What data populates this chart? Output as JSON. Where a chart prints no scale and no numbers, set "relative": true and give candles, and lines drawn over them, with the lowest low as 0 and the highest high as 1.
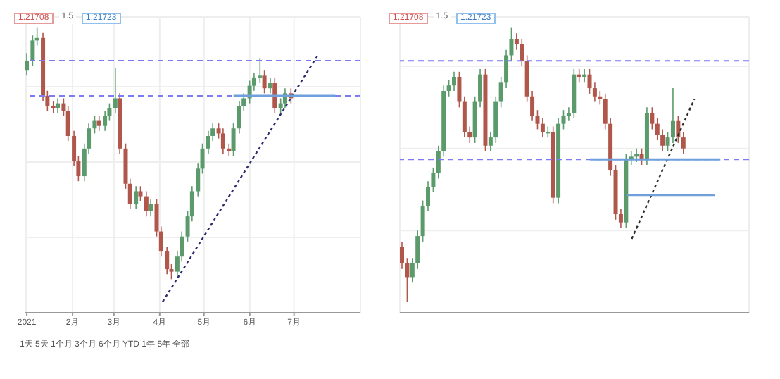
{
  "chart_data": [
    {
      "type": "candlestick",
      "relative": true,
      "grid": true,
      "annotations": [
        "1.21708",
        "1.5",
        "1.21723",
        "1天 5天 1个月 3个月 6个月 YTD 1年 5年 全部"
      ],
      "x": [
        "2021-01-01",
        "2021-01-05",
        "2021-01-08",
        "2021-01-12",
        "2021-01-15",
        "2021-01-19",
        "2021-01-22",
        "2021-01-26",
        "2021-01-29",
        "2021-02-02",
        "2021-02-05",
        "2021-02-09",
        "2021-02-12",
        "2021-02-16",
        "2021-02-19",
        "2021-02-23",
        "2021-02-26",
        "2021-03-02",
        "2021-03-05",
        "2021-03-09",
        "2021-03-12",
        "2021-03-16",
        "2021-03-19",
        "2021-03-23",
        "2021-03-26",
        "2021-03-30",
        "2021-04-02",
        "2021-04-06",
        "2021-04-09",
        "2021-04-13",
        "2021-04-16",
        "2021-04-20",
        "2021-04-23",
        "2021-04-27",
        "2021-04-30",
        "2021-05-04",
        "2021-05-07",
        "2021-05-11",
        "2021-05-14",
        "2021-05-18",
        "2021-05-21",
        "2021-05-25",
        "2021-05-28",
        "2021-06-01",
        "2021-06-04",
        "2021-06-08",
        "2021-06-11",
        "2021-06-15",
        "2021-06-18",
        "2021-06-22",
        "2021-06-25",
        "2021-06-29"
      ],
      "ohlc": [
        [
          0.83,
          0.9,
          0.81,
          0.87
        ],
        [
          0.87,
          0.97,
          0.85,
          0.95
        ],
        [
          0.95,
          1,
          0.93,
          0.96
        ],
        [
          0.96,
          0.98,
          0.71,
          0.73
        ],
        [
          0.73,
          0.75,
          0.67,
          0.69
        ],
        [
          0.69,
          0.71,
          0.66,
          0.68
        ],
        [
          0.68,
          0.72,
          0.66,
          0.7
        ],
        [
          0.7,
          0.72,
          0.65,
          0.67
        ],
        [
          0.67,
          0.69,
          0.55,
          0.57
        ],
        [
          0.57,
          0.59,
          0.45,
          0.47
        ],
        [
          0.47,
          0.49,
          0.39,
          0.41
        ],
        [
          0.41,
          0.54,
          0.39,
          0.52
        ],
        [
          0.52,
          0.62,
          0.5,
          0.6
        ],
        [
          0.6,
          0.65,
          0.58,
          0.63
        ],
        [
          0.63,
          0.65,
          0.59,
          0.61
        ],
        [
          0.61,
          0.67,
          0.59,
          0.65
        ],
        [
          0.65,
          0.7,
          0.63,
          0.68
        ],
        [
          0.68,
          0.84,
          0.66,
          0.72
        ],
        [
          0.72,
          0.74,
          0.5,
          0.52
        ],
        [
          0.52,
          0.54,
          0.36,
          0.38
        ],
        [
          0.38,
          0.4,
          0.28,
          0.3
        ],
        [
          0.3,
          0.37,
          0.28,
          0.35
        ],
        [
          0.35,
          0.37,
          0.31,
          0.33
        ],
        [
          0.33,
          0.35,
          0.25,
          0.27
        ],
        [
          0.27,
          0.32,
          0.25,
          0.3
        ],
        [
          0.3,
          0.32,
          0.17,
          0.19
        ],
        [
          0.19,
          0.21,
          0.09,
          0.11
        ],
        [
          0.11,
          0.13,
          0.02,
          0.04
        ],
        [
          0.04,
          0.06,
          0,
          0.03
        ],
        [
          0.03,
          0.11,
          0.01,
          0.09
        ],
        [
          0.09,
          0.19,
          0.07,
          0.17
        ],
        [
          0.17,
          0.27,
          0.15,
          0.25
        ],
        [
          0.25,
          0.37,
          0.23,
          0.35
        ],
        [
          0.35,
          0.46,
          0.33,
          0.44
        ],
        [
          0.44,
          0.54,
          0.42,
          0.52
        ],
        [
          0.52,
          0.59,
          0.5,
          0.57
        ],
        [
          0.57,
          0.62,
          0.55,
          0.6
        ],
        [
          0.6,
          0.62,
          0.56,
          0.58
        ],
        [
          0.58,
          0.6,
          0.5,
          0.52
        ],
        [
          0.52,
          0.54,
          0.49,
          0.51
        ],
        [
          0.51,
          0.62,
          0.49,
          0.6
        ],
        [
          0.6,
          0.71,
          0.58,
          0.69
        ],
        [
          0.69,
          0.74,
          0.67,
          0.72
        ],
        [
          0.72,
          0.79,
          0.7,
          0.77
        ],
        [
          0.77,
          0.82,
          0.75,
          0.8
        ],
        [
          0.8,
          0.88,
          0.78,
          0.81
        ],
        [
          0.81,
          0.83,
          0.74,
          0.76
        ],
        [
          0.76,
          0.8,
          0.74,
          0.78
        ],
        [
          0.78,
          0.8,
          0.66,
          0.68
        ],
        [
          0.68,
          0.72,
          0.66,
          0.7
        ],
        [
          0.7,
          0.76,
          0.68,
          0.74
        ],
        [
          0.74,
          0.76,
          0.7,
          0.72
        ]
      ],
      "xlim": [
        "2020-12-31",
        "2021-08-15"
      ],
      "xticks": [
        {
          "value": "2021-01-01",
          "label": "2021"
        },
        {
          "value": "2021-02-01",
          "label": "2月"
        },
        {
          "value": "2021-03-01",
          "label": "3月"
        },
        {
          "value": "2021-04-01",
          "label": "4月"
        },
        {
          "value": "2021-05-01",
          "label": "5月"
        },
        {
          "value": "2021-06-01",
          "label": "6月"
        },
        {
          "value": "2021-07-01",
          "label": "7月"
        }
      ],
      "series": [
        {
          "type": "line",
          "x": [
            "2021-04-03",
            "2021-07-17"
          ],
          "values": [
            -0.09,
            0.89
          ],
          "color": "#2e2e6e",
          "line_style": "dotted"
        },
        {
          "type": "line",
          "x": [
            "2021-05-21",
            "2021-07-29"
          ],
          "values": [
            0.73,
            0.73
          ],
          "color": "#6fa0dc",
          "line_style": "solid"
        }
      ],
      "ref_lines": [
        {
          "axis": "y",
          "value": 0.87,
          "color": "#7b7bf5",
          "line_style": "dashed"
        },
        {
          "axis": "y",
          "value": 0.73,
          "color": "#7b7bf5",
          "line_style": "dashed"
        }
      ]
    },
    {
      "type": "candlestick",
      "relative": true,
      "grid": true,
      "annotations": [
        "1.21708",
        "1.5",
        "1.21723"
      ],
      "categories": [
        null,
        null,
        null,
        null,
        null,
        null,
        null,
        null,
        null,
        null,
        null,
        null,
        null,
        null,
        null,
        null,
        null,
        null,
        null,
        null,
        null,
        null,
        null,
        null,
        null,
        null,
        null,
        null,
        null,
        null,
        null,
        null,
        null,
        null,
        null,
        null,
        null,
        null,
        null,
        null,
        null,
        null,
        null,
        null,
        null,
        null,
        null,
        null,
        null,
        null,
        null,
        null,
        null,
        null,
        null,
        null,
        null,
        null,
        null,
        null,
        null,
        null,
        null,
        null,
        null,
        null,
        null
      ],
      "ohlc": [
        [
          0.2,
          0.22,
          0.12,
          0.14
        ],
        [
          0.14,
          0.16,
          0,
          0.09
        ],
        [
          0.09,
          0.16,
          0.07,
          0.14
        ],
        [
          0.14,
          0.26,
          0.12,
          0.24
        ],
        [
          0.24,
          0.37,
          0.22,
          0.35
        ],
        [
          0.35,
          0.44,
          0.33,
          0.42
        ],
        [
          0.42,
          0.49,
          0.4,
          0.47
        ],
        [
          0.47,
          0.57,
          0.45,
          0.55
        ],
        [
          0.55,
          0.79,
          0.53,
          0.77
        ],
        [
          0.77,
          0.81,
          0.75,
          0.79
        ],
        [
          0.79,
          0.84,
          0.77,
          0.82
        ],
        [
          0.82,
          0.84,
          0.71,
          0.73
        ],
        [
          0.73,
          0.75,
          0.6,
          0.62
        ],
        [
          0.62,
          0.64,
          0.58,
          0.6
        ],
        [
          0.6,
          0.75,
          0.58,
          0.73
        ],
        [
          0.73,
          0.85,
          0.71,
          0.83
        ],
        [
          0.83,
          0.85,
          0.55,
          0.57
        ],
        [
          0.57,
          0.62,
          0.55,
          0.6
        ],
        [
          0.6,
          0.75,
          0.58,
          0.73
        ],
        [
          0.73,
          0.82,
          0.71,
          0.8
        ],
        [
          0.8,
          0.92,
          0.78,
          0.9
        ],
        [
          0.9,
          1,
          0.88,
          0.96
        ],
        [
          0.96,
          0.98,
          0.92,
          0.94
        ],
        [
          0.94,
          0.96,
          0.86,
          0.88
        ],
        [
          0.88,
          0.9,
          0.73,
          0.75
        ],
        [
          0.75,
          0.77,
          0.66,
          0.68
        ],
        [
          0.68,
          0.7,
          0.63,
          0.65
        ],
        [
          0.65,
          0.67,
          0.6,
          0.62
        ],
        [
          0.62,
          0.64,
          0.6,
          0.62
        ],
        [
          0.62,
          0.64,
          0.36,
          0.38
        ],
        [
          0.38,
          0.67,
          0.36,
          0.65
        ],
        [
          0.65,
          0.7,
          0.63,
          0.68
        ],
        [
          0.68,
          0.71,
          0.66,
          0.69
        ],
        [
          0.69,
          0.85,
          0.67,
          0.83
        ],
        [
          0.83,
          0.85,
          0.8,
          0.82
        ],
        [
          0.82,
          0.85,
          0.8,
          0.83
        ],
        [
          0.83,
          0.85,
          0.76,
          0.78
        ],
        [
          0.78,
          0.8,
          0.73,
          0.75
        ],
        [
          0.75,
          0.77,
          0.72,
          0.74
        ],
        [
          0.74,
          0.76,
          0.63,
          0.65
        ],
        [
          0.65,
          0.67,
          0.46,
          0.48
        ],
        [
          0.48,
          0.5,
          0.3,
          0.32
        ],
        [
          0.32,
          0.34,
          0.27,
          0.29
        ],
        [
          0.29,
          0.54,
          0.27,
          0.52
        ],
        [
          0.52,
          0.55,
          0.5,
          0.53
        ],
        [
          0.53,
          0.56,
          0.51,
          0.54
        ],
        [
          0.54,
          0.56,
          0.5,
          0.52
        ],
        [
          0.52,
          0.71,
          0.5,
          0.69
        ],
        [
          0.69,
          0.71,
          0.63,
          0.65
        ],
        [
          0.65,
          0.67,
          0.59,
          0.61
        ],
        [
          0.61,
          0.63,
          0.55,
          0.57
        ],
        [
          0.57,
          0.62,
          0.55,
          0.6
        ],
        [
          0.6,
          0.78,
          0.58,
          0.66
        ],
        [
          0.66,
          0.68,
          0.58,
          0.6
        ],
        [
          0.6,
          0.62,
          0.54,
          0.56
        ],
        null,
        null,
        null,
        null,
        null,
        null,
        null,
        null,
        null,
        null,
        null,
        null
      ],
      "series": [
        {
          "type": "line",
          "values": [
            null,
            null,
            null,
            null,
            null,
            null,
            null,
            null,
            null,
            null,
            null,
            null,
            null,
            null,
            null,
            null,
            null,
            null,
            null,
            null,
            null,
            null,
            null,
            null,
            null,
            null,
            null,
            null,
            null,
            null,
            null,
            null,
            null,
            null,
            null,
            null,
            null,
            null,
            null,
            null,
            null,
            null,
            null,
            null,
            0.23,
            null,
            null,
            null,
            null,
            null,
            null,
            null,
            null,
            null,
            null,
            null,
            0.74,
            null,
            null,
            null,
            null,
            null,
            null,
            null,
            null,
            null,
            null
          ],
          "color": "#2e2e2e",
          "line_style": "dotted"
        },
        {
          "type": "line",
          "values": [
            null,
            null,
            null,
            null,
            null,
            null,
            null,
            null,
            null,
            null,
            null,
            null,
            null,
            null,
            null,
            null,
            null,
            null,
            null,
            null,
            null,
            null,
            null,
            null,
            null,
            null,
            null,
            null,
            null,
            null,
            null,
            null,
            null,
            null,
            null,
            null,
            0.52,
            null,
            null,
            null,
            null,
            null,
            null,
            null,
            null,
            null,
            null,
            null,
            null,
            null,
            null,
            null,
            null,
            null,
            null,
            null,
            null,
            null,
            null,
            null,
            null,
            0.52,
            null,
            null,
            null,
            null,
            null
          ],
          "color": "#6fa0dc",
          "line_style": "solid"
        },
        {
          "type": "line",
          "values": [
            null,
            null,
            null,
            null,
            null,
            null,
            null,
            null,
            null,
            null,
            null,
            null,
            null,
            null,
            null,
            null,
            null,
            null,
            null,
            null,
            null,
            null,
            null,
            null,
            null,
            null,
            null,
            null,
            null,
            null,
            null,
            null,
            null,
            null,
            null,
            null,
            null,
            null,
            null,
            null,
            null,
            null,
            null,
            0.39,
            null,
            null,
            null,
            null,
            null,
            null,
            null,
            null,
            null,
            null,
            null,
            null,
            null,
            null,
            null,
            null,
            0.39,
            null,
            null,
            null,
            null,
            null,
            null
          ],
          "color": "#6fa0dc",
          "line_style": "solid"
        }
      ],
      "ref_lines": [
        {
          "axis": "y",
          "value": 0.88,
          "color": "#7b7bf5",
          "line_style": "dashed"
        },
        {
          "axis": "y",
          "value": 0.52,
          "color": "#7b7bf5",
          "line_style": "dashed"
        }
      ]
    }
  ]
}
